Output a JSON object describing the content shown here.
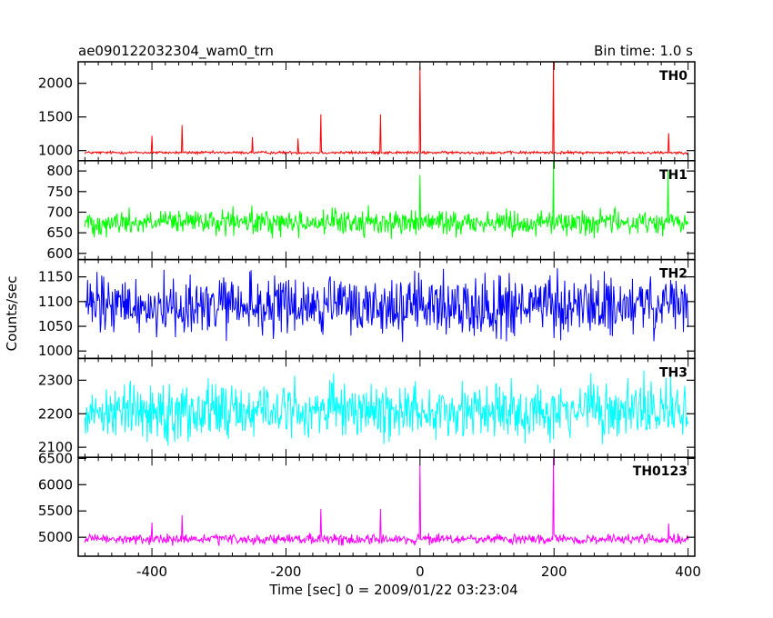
{
  "header": {
    "title": "ae090122032304_wam0_trn",
    "bin_time": "Bin time: 1.0 s"
  },
  "axes": {
    "xlabel": "Time [sec] 0 = 2009/01/22 03:23:04",
    "ylabel": "Counts/sec"
  },
  "chart_data": {
    "type": "line",
    "title": "ae090122032304_wam0_trn",
    "xlabel": "Time [sec] 0 = 2009/01/22 03:23:04",
    "ylabel": "Counts/sec",
    "xlim": [
      -510,
      410
    ],
    "x_start": -500,
    "x_end": 400,
    "bin_seconds": 1.0,
    "x_ticks": [
      -400,
      -200,
      0,
      200,
      400
    ],
    "panels": [
      {
        "name": "TH0",
        "color": "#ff0000",
        "ylim": [
          850,
          2320
        ],
        "y_ticks": [
          1000,
          1500,
          2000
        ],
        "baseline": 970,
        "noise_amplitude": 60,
        "spikes": [
          {
            "x": -400,
            "y": 1220
          },
          {
            "x": -355,
            "y": 1380
          },
          {
            "x": -250,
            "y": 1200
          },
          {
            "x": -182,
            "y": 1180
          },
          {
            "x": -148,
            "y": 1540
          },
          {
            "x": -59,
            "y": 1540
          },
          {
            "x": 0,
            "y": 2250
          },
          {
            "x": 199,
            "y": 2320
          },
          {
            "x": 371,
            "y": 1260
          }
        ]
      },
      {
        "name": "TH1",
        "color": "#00ff00",
        "ylim": [
          585,
          825
        ],
        "y_ticks": [
          600,
          650,
          700,
          750,
          800
        ],
        "baseline": 675,
        "noise_amplitude": 90,
        "spikes": [
          {
            "x": 0,
            "y": 790
          },
          {
            "x": 199,
            "y": 825
          },
          {
            "x": 370,
            "y": 800
          }
        ]
      },
      {
        "name": "TH2",
        "color": "#0000ff",
        "ylim": [
          985,
          1185
        ],
        "y_ticks": [
          1000,
          1050,
          1100,
          1150
        ],
        "baseline": 1090,
        "noise_amplitude": 180,
        "spikes": []
      },
      {
        "name": "TH3",
        "color": "#00ffff",
        "ylim": [
          2070,
          2365
        ],
        "y_ticks": [
          2100,
          2200,
          2300
        ],
        "baseline": 2210,
        "noise_amplitude": 250,
        "spikes": []
      },
      {
        "name": "TH0123",
        "color": "#ff00ff",
        "ylim": [
          4640,
          6520
        ],
        "y_ticks": [
          5000,
          5500,
          6000,
          6500
        ],
        "baseline": 4960,
        "noise_amplitude": 280,
        "spikes": [
          {
            "x": -400,
            "y": 5280
          },
          {
            "x": -355,
            "y": 5420
          },
          {
            "x": -148,
            "y": 5540
          },
          {
            "x": -59,
            "y": 5540
          },
          {
            "x": 0,
            "y": 6380
          },
          {
            "x": 199,
            "y": 6520
          },
          {
            "x": 371,
            "y": 5260
          }
        ]
      }
    ]
  }
}
